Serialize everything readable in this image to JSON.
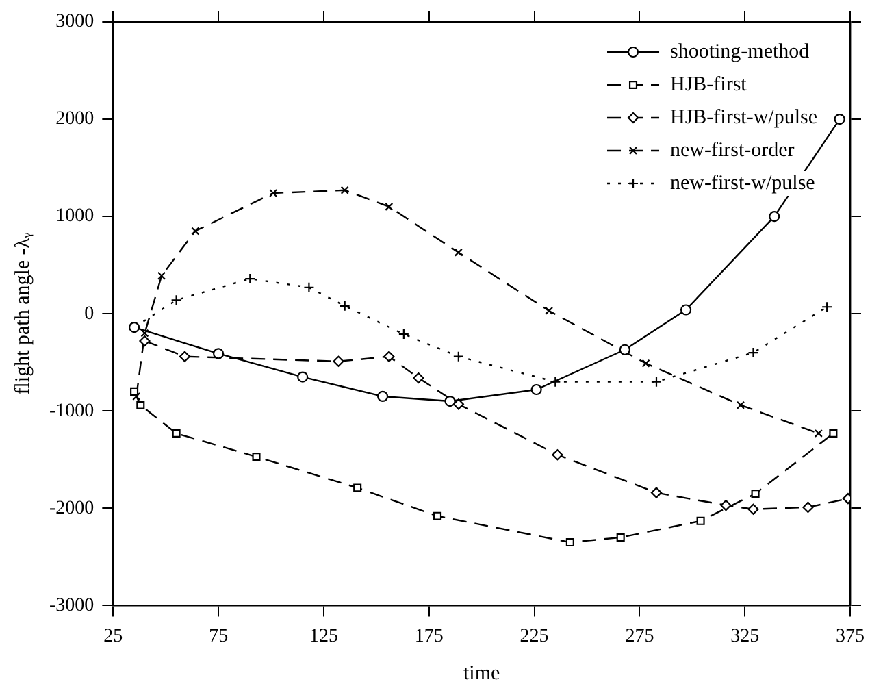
{
  "chart_data": {
    "type": "line",
    "xlabel": "time",
    "ylabel": "flight path angle -λᵧ",
    "xlim": [
      25,
      375
    ],
    "xticks": [
      25,
      75,
      125,
      175,
      225,
      275,
      325,
      375
    ],
    "ylim": [
      -3000,
      3000
    ],
    "yticks": [
      -3000,
      -2000,
      -1000,
      0,
      1000,
      2000,
      3000
    ],
    "grid": false,
    "legend": "top right",
    "series": [
      {
        "name": "shooting-method",
        "color": "#000000",
        "marker": "circle",
        "line_style": "solid",
        "x": [
          35,
          75,
          115,
          153,
          185,
          226,
          268,
          297,
          339,
          370
        ],
        "values": [
          -140,
          -410,
          -650,
          -850,
          -900,
          -780,
          -370,
          40,
          1000,
          2000
        ]
      },
      {
        "name": "HJB-first",
        "color": "#000000",
        "marker": "square",
        "line_style": "dashed",
        "x": [
          35,
          38,
          55,
          93,
          141,
          179,
          242,
          266,
          304,
          330,
          367
        ],
        "values": [
          -800,
          -940,
          -1230,
          -1470,
          -1790,
          -2080,
          -2350,
          -2300,
          -2130,
          -1850,
          -1230
        ]
      },
      {
        "name": "HJB-first-w/pulse",
        "color": "#000000",
        "marker": "diamond",
        "line_style": "dashed",
        "x": [
          40,
          59,
          132,
          156,
          170,
          189,
          236,
          283,
          316,
          329,
          355,
          374
        ],
        "values": [
          -280,
          -440,
          -490,
          -440,
          -660,
          -930,
          -1450,
          -1840,
          -1970,
          -2010,
          -1990,
          -1900
        ]
      },
      {
        "name": "new-first-order",
        "color": "#000000",
        "marker": "cross",
        "line_style": "dashed",
        "x": [
          36,
          40,
          48,
          64,
          101,
          135,
          156,
          189,
          232,
          278,
          323,
          360
        ],
        "values": [
          -850,
          -200,
          390,
          850,
          1240,
          1270,
          1100,
          630,
          30,
          -510,
          -940,
          -1230
        ]
      },
      {
        "name": "new-first-w/pulse",
        "color": "#000000",
        "marker": "plus",
        "line_style": "dotted",
        "x": [
          35,
          55,
          90,
          118,
          135,
          163,
          189,
          235,
          283,
          329,
          364
        ],
        "values": [
          -140,
          140,
          360,
          270,
          80,
          -210,
          -440,
          -700,
          -700,
          -400,
          70
        ]
      }
    ]
  }
}
